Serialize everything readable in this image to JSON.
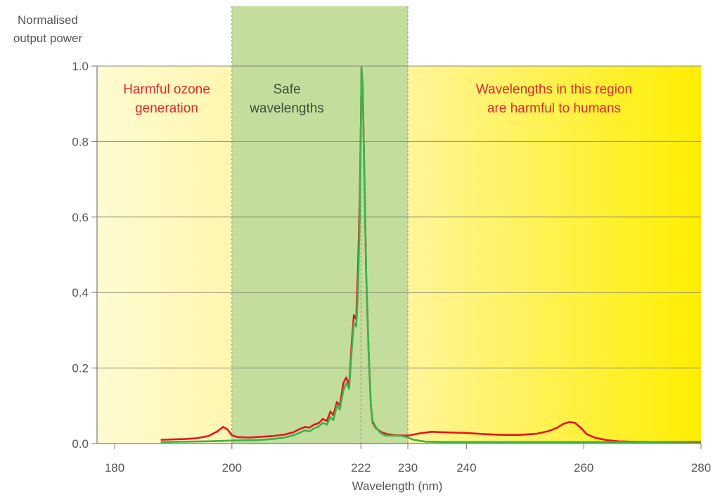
{
  "chart_data": {
    "type": "line",
    "title": "",
    "xlabel": "Wavelength (nm)",
    "ylabel_lines": [
      "Normalised",
      "output power"
    ],
    "xlim": [
      177,
      280
    ],
    "ylim": [
      0,
      1.0
    ],
    "x_ticks": [
      180,
      200,
      222,
      230,
      240,
      260,
      280
    ],
    "y_ticks": [
      0.0,
      0.2,
      0.4,
      0.6,
      0.8,
      1.0
    ],
    "y_tick_labels": [
      "0.0",
      "0.2",
      "0.4",
      "0.6",
      "0.8",
      "1.0"
    ],
    "grid": "horizontal",
    "reference_lines": [
      200,
      222,
      230
    ],
    "regions": [
      {
        "name": "ozone",
        "from": 177,
        "to": 200,
        "label_lines": [
          "Harmful ozone",
          "generation"
        ],
        "label_color": "#e02a2a",
        "fill": "#fff7b8"
      },
      {
        "name": "safe",
        "from": 200,
        "to": 230,
        "label_lines": [
          "Safe",
          "wavelengths"
        ],
        "label_color": "#3f4f3a",
        "fill": "#c3dd9d"
      },
      {
        "name": "harmful",
        "from": 230,
        "to": 280,
        "label_lines": [
          "Wavelengths in this region",
          "are harmful to humans"
        ],
        "label_color": "#e02a2a",
        "fill_from": "#fff59a",
        "fill_to": "#ffee00"
      }
    ],
    "series": [
      {
        "color": "#e8141b",
        "points": [
          [
            188,
            0.01
          ],
          [
            190,
            0.011
          ],
          [
            192,
            0.012
          ],
          [
            194,
            0.014
          ],
          [
            196,
            0.02
          ],
          [
            197.5,
            0.032
          ],
          [
            198.5,
            0.044
          ],
          [
            199.2,
            0.038
          ],
          [
            200,
            0.022
          ],
          [
            201,
            0.017
          ],
          [
            203,
            0.016
          ],
          [
            205,
            0.018
          ],
          [
            207,
            0.02
          ],
          [
            209,
            0.024
          ],
          [
            210.5,
            0.03
          ],
          [
            211.5,
            0.038
          ],
          [
            212.5,
            0.044
          ],
          [
            213.2,
            0.042
          ],
          [
            214,
            0.05
          ],
          [
            214.8,
            0.054
          ],
          [
            215.5,
            0.065
          ],
          [
            216.2,
            0.06
          ],
          [
            216.8,
            0.085
          ],
          [
            217.3,
            0.075
          ],
          [
            217.9,
            0.11
          ],
          [
            218.4,
            0.1
          ],
          [
            219.0,
            0.16
          ],
          [
            219.5,
            0.175
          ],
          [
            220.0,
            0.155
          ],
          [
            220.4,
            0.26
          ],
          [
            220.8,
            0.34
          ],
          [
            221.2,
            0.33
          ],
          [
            221.5,
            0.46
          ],
          [
            221.8,
            0.65
          ],
          [
            222.0,
            0.85
          ],
          [
            222.1,
            0.99
          ],
          [
            222.3,
            0.95
          ],
          [
            222.6,
            0.7
          ],
          [
            222.9,
            0.45
          ],
          [
            223.3,
            0.25
          ],
          [
            223.7,
            0.1
          ],
          [
            224.0,
            0.055
          ],
          [
            224.6,
            0.04
          ],
          [
            225.5,
            0.03
          ],
          [
            226.5,
            0.025
          ],
          [
            228,
            0.022
          ],
          [
            230,
            0.021
          ],
          [
            232,
            0.027
          ],
          [
            234,
            0.031
          ],
          [
            236,
            0.03
          ],
          [
            238,
            0.029
          ],
          [
            240,
            0.028
          ],
          [
            243,
            0.025
          ],
          [
            246,
            0.023
          ],
          [
            249,
            0.023
          ],
          [
            252,
            0.026
          ],
          [
            254,
            0.033
          ],
          [
            255.5,
            0.042
          ],
          [
            256.5,
            0.052
          ],
          [
            257.5,
            0.057
          ],
          [
            258.5,
            0.055
          ],
          [
            259.5,
            0.042
          ],
          [
            260.5,
            0.025
          ],
          [
            262,
            0.015
          ],
          [
            264,
            0.009
          ],
          [
            266,
            0.006
          ],
          [
            268,
            0.005
          ],
          [
            272,
            0.004
          ],
          [
            276,
            0.004
          ],
          [
            280,
            0.004
          ]
        ]
      },
      {
        "color": "#3db34a",
        "points": [
          [
            188,
            0.004
          ],
          [
            192,
            0.005
          ],
          [
            196,
            0.006
          ],
          [
            200,
            0.008
          ],
          [
            204,
            0.009
          ],
          [
            207,
            0.012
          ],
          [
            209,
            0.016
          ],
          [
            210.5,
            0.022
          ],
          [
            211.5,
            0.028
          ],
          [
            212.5,
            0.035
          ],
          [
            213.2,
            0.032
          ],
          [
            214,
            0.04
          ],
          [
            214.8,
            0.045
          ],
          [
            215.5,
            0.055
          ],
          [
            216.2,
            0.05
          ],
          [
            216.8,
            0.07
          ],
          [
            217.3,
            0.062
          ],
          [
            217.9,
            0.1
          ],
          [
            218.4,
            0.09
          ],
          [
            219.0,
            0.14
          ],
          [
            219.5,
            0.16
          ],
          [
            220.0,
            0.145
          ],
          [
            220.4,
            0.24
          ],
          [
            220.8,
            0.32
          ],
          [
            221.2,
            0.31
          ],
          [
            221.5,
            0.4
          ],
          [
            221.8,
            0.6
          ],
          [
            222.0,
            0.85
          ],
          [
            222.1,
            0.997
          ],
          [
            222.3,
            0.95
          ],
          [
            222.6,
            0.7
          ],
          [
            222.9,
            0.45
          ],
          [
            223.3,
            0.25
          ],
          [
            223.7,
            0.1
          ],
          [
            224.0,
            0.06
          ],
          [
            224.5,
            0.045
          ],
          [
            225.2,
            0.03
          ],
          [
            226,
            0.022
          ],
          [
            227,
            0.021
          ],
          [
            228,
            0.021
          ],
          [
            229,
            0.02
          ],
          [
            230,
            0.016
          ],
          [
            231,
            0.01
          ],
          [
            233,
            0.005
          ],
          [
            236,
            0.004
          ],
          [
            240,
            0.004
          ],
          [
            250,
            0.004
          ],
          [
            260,
            0.004
          ],
          [
            270,
            0.004
          ],
          [
            280,
            0.005
          ]
        ]
      }
    ]
  }
}
